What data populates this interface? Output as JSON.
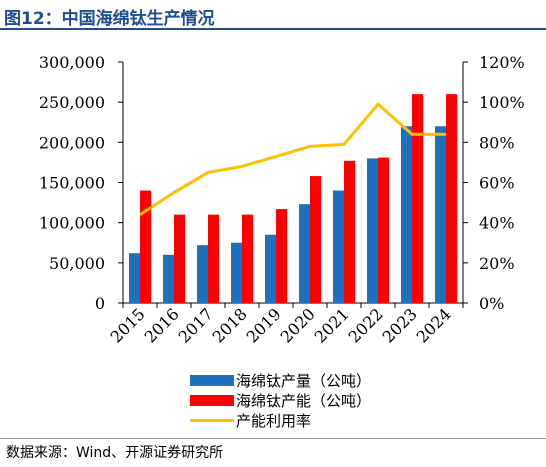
{
  "figure_title": "图12：中国海绵钛生产情况",
  "source_note": "数据来源：Wind、开源证券研究所",
  "colors": {
    "output": "#1f6fbf",
    "capacity": "#ff0000",
    "utilization": "#ffc000",
    "title": "#1f4e8c"
  },
  "chart_data": {
    "type": "bar",
    "categories": [
      "2015",
      "2016",
      "2017",
      "2018",
      "2019",
      "2020",
      "2021",
      "2022",
      "2023",
      "2024"
    ],
    "series": [
      {
        "name": "海绵钛产量（公吨）",
        "type": "bar",
        "axis": "left",
        "values": [
          62000,
          60000,
          72000,
          75000,
          85000,
          123000,
          140000,
          180000,
          220000,
          220000
        ]
      },
      {
        "name": "海绵钛产能（公吨）",
        "type": "bar",
        "axis": "left",
        "values": [
          140000,
          110000,
          110000,
          110000,
          117000,
          158000,
          177000,
          181000,
          260000,
          260000
        ]
      },
      {
        "name": "产能利用率",
        "type": "line",
        "axis": "right",
        "values": [
          44,
          55,
          65,
          68,
          73,
          78,
          79,
          99,
          84,
          84
        ]
      }
    ],
    "y_left": {
      "range": [
        0,
        300000
      ],
      "ticks": [
        "0",
        "50,000",
        "100,000",
        "150,000",
        "200,000",
        "250,000",
        "300,000"
      ]
    },
    "y_right": {
      "range": [
        0,
        120
      ],
      "ticks": [
        "0%",
        "20%",
        "40%",
        "60%",
        "80%",
        "100%",
        "120%"
      ]
    },
    "grid": false,
    "legend_position": "bottom"
  }
}
